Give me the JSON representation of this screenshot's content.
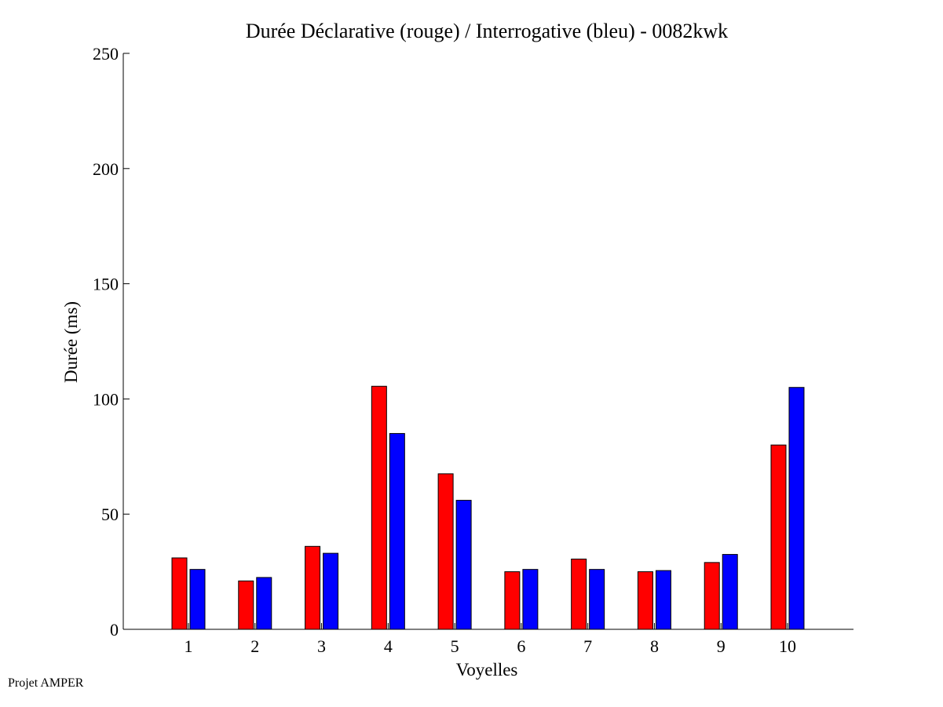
{
  "footer": "Projet AMPER",
  "chart_data": {
    "type": "bar",
    "title": "Durée Déclarative (rouge) / Interrogative (bleu) - 0082kwk",
    "xlabel": "Voyelles",
    "ylabel": "Durée (ms)",
    "ylim": [
      0,
      250
    ],
    "yticks": [
      0,
      50,
      100,
      150,
      200,
      250
    ],
    "categories": [
      "1",
      "2",
      "3",
      "4",
      "5",
      "6",
      "7",
      "8",
      "9",
      "10"
    ],
    "series": [
      {
        "color": "#ff0000",
        "values": [
          31,
          21,
          36,
          105.5,
          67.5,
          25,
          30.5,
          25,
          29,
          80
        ]
      },
      {
        "color": "#0000ff",
        "values": [
          26,
          22.5,
          33,
          85,
          56,
          26,
          26,
          25.5,
          32.5,
          105
        ]
      }
    ],
    "grid": false,
    "legend": "none"
  }
}
